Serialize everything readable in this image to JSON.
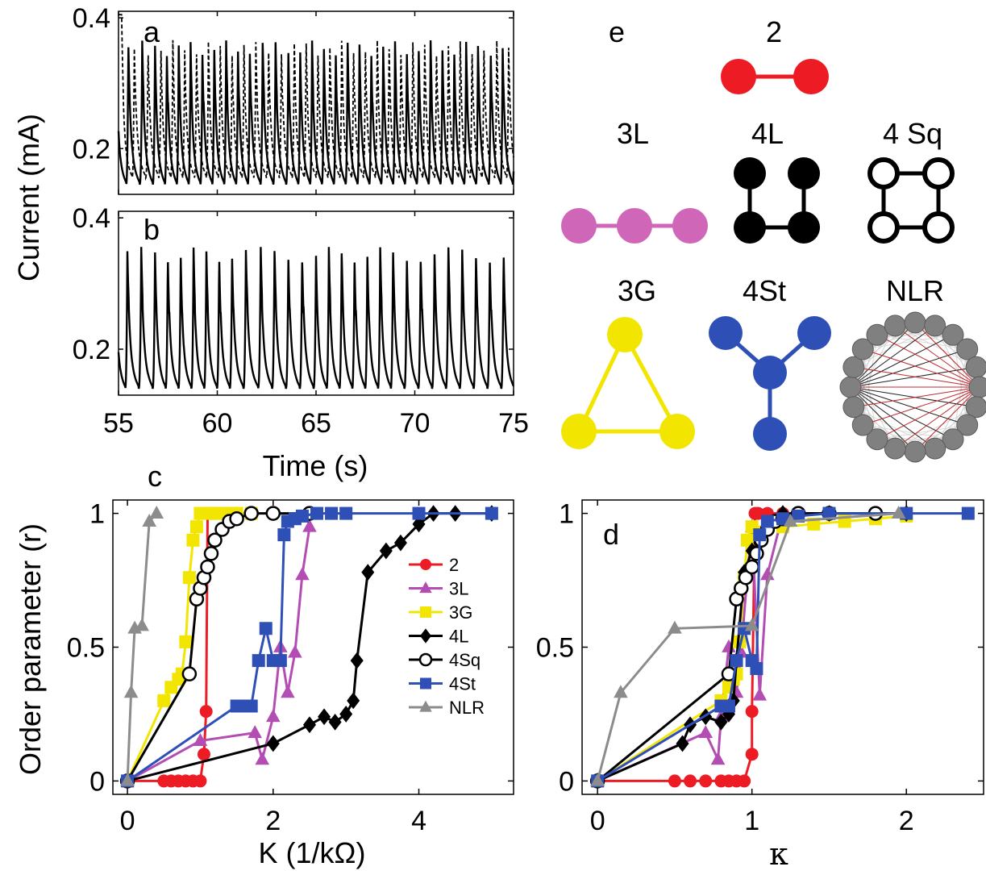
{
  "chart_data": [
    {
      "panel": "a",
      "type": "line",
      "ylabel": "Current (mA)",
      "xlim": [
        55,
        75
      ],
      "ylim": [
        0.13,
        0.41
      ],
      "yticks": [
        "0.2",
        "0.4"
      ],
      "series": [
        {
          "style": "solid",
          "peak_times": [
            55.5,
            56.2,
            56.85,
            57.45,
            58.05,
            58.65,
            59.25,
            59.85,
            60.45,
            61.05,
            61.65,
            62.3,
            62.95,
            63.6,
            64.2,
            64.8,
            65.4,
            66.0,
            66.6,
            67.2,
            67.8,
            68.4,
            69.0,
            69.6,
            70.2,
            70.8,
            71.4,
            72.0,
            72.6,
            73.2,
            73.85,
            74.45
          ],
          "peak_max": 0.36,
          "trough_min": 0.145
        },
        {
          "style": "dashed",
          "peak_times": [
            55.8,
            56.5,
            57.15,
            57.75,
            58.35,
            58.95,
            59.55,
            60.15,
            60.75,
            61.35,
            61.95,
            62.6,
            63.25,
            63.9,
            64.5,
            65.1,
            65.7,
            66.3,
            66.9,
            67.5,
            68.1,
            68.7,
            69.3,
            69.9,
            70.5,
            71.1,
            71.7,
            72.3,
            72.9,
            73.5,
            74.15,
            74.75
          ],
          "peak_max": 0.36,
          "trough_min": 0.155
        }
      ]
    },
    {
      "panel": "b",
      "type": "line",
      "xlabel": "Time (s)",
      "xlim": [
        55,
        75
      ],
      "ylim": [
        0.13,
        0.41
      ],
      "xticks": [
        "55",
        "60",
        "65",
        "70",
        "75"
      ],
      "yticks": [
        "0.2",
        "0.4"
      ],
      "series": [
        {
          "style": "solid",
          "peak_times": [
            55.45,
            56.15,
            56.85,
            57.5,
            58.15,
            58.8,
            59.45,
            60.1,
            60.75,
            61.45,
            62.2,
            62.9,
            63.6,
            64.3,
            65.0,
            65.65,
            66.3,
            66.95,
            67.6,
            68.25,
            68.9,
            69.6,
            70.3,
            71.0,
            71.7,
            72.4,
            73.1,
            73.8,
            74.5
          ],
          "peak_max": 0.35,
          "trough_min": 0.14
        }
      ]
    },
    {
      "panel": "c",
      "type": "line",
      "xlabel": "K (1/kΩ)",
      "ylabel": "Order parameter (r)",
      "xlim": [
        -0.2,
        5.3
      ],
      "ylim": [
        -0.05,
        1.05
      ],
      "xticks": [
        "0",
        "2",
        "4"
      ],
      "yticks": [
        "0",
        "0.5",
        "1"
      ],
      "legend_position": "center-right",
      "series": [
        {
          "name": "2",
          "color": "#ed1c24",
          "marker": "circle-filled",
          "x": [
            0,
            0.5,
            0.6,
            0.7,
            0.8,
            0.9,
            1.0,
            1.05,
            1.08,
            1.1,
            1.15,
            1.2,
            1.3,
            1.5
          ],
          "y": [
            0,
            0,
            0,
            0,
            0,
            0,
            0,
            0.1,
            0.26,
            1.0,
            1.0,
            1.0,
            1.0,
            1.0
          ]
        },
        {
          "name": "3L",
          "color": "#b34db3",
          "marker": "triangle-filled",
          "x": [
            0,
            1.0,
            1.75,
            1.85,
            2.0,
            2.1,
            2.2,
            2.3,
            2.4,
            2.5
          ],
          "y": [
            0,
            0.15,
            0.18,
            0.08,
            0.24,
            0.5,
            0.33,
            0.48,
            0.77,
            0.95
          ]
        },
        {
          "name": "3G",
          "color": "#f2e600",
          "marker": "square-filled",
          "x": [
            0,
            0.5,
            0.6,
            0.7,
            0.75,
            0.8,
            0.85,
            0.9,
            0.95,
            1.0,
            1.1,
            1.2,
            1.3,
            1.4,
            1.5,
            1.7
          ],
          "y": [
            0,
            0.3,
            0.35,
            0.38,
            0.4,
            0.52,
            0.76,
            0.9,
            0.95,
            1.0,
            1.0,
            1.0,
            1.0,
            1.0,
            1.0,
            1.0
          ]
        },
        {
          "name": "4L",
          "color": "#000000",
          "marker": "diamond-filled",
          "x": [
            0,
            2.0,
            2.5,
            2.7,
            2.85,
            3.0,
            3.1,
            3.15,
            3.3,
            3.55,
            3.75,
            4.0,
            4.2,
            4.5,
            5.0
          ],
          "y": [
            0,
            0.14,
            0.21,
            0.24,
            0.22,
            0.25,
            0.3,
            0.45,
            0.78,
            0.86,
            0.89,
            0.96,
            1.0,
            1.0,
            1.0
          ]
        },
        {
          "name": "4Sq",
          "color": "#000000",
          "marker": "circle-open",
          "x": [
            0,
            0.85,
            0.95,
            1.0,
            1.05,
            1.1,
            1.15,
            1.2,
            1.3,
            1.4,
            1.5,
            1.7,
            2.0,
            2.5
          ],
          "y": [
            0,
            0.4,
            0.68,
            0.72,
            0.76,
            0.8,
            0.85,
            0.9,
            0.94,
            0.97,
            0.98,
            1.0,
            1.0,
            1.0
          ]
        },
        {
          "name": "4St",
          "color": "#2e4fb6",
          "marker": "square-filled",
          "x": [
            0,
            1.5,
            1.6,
            1.7,
            1.8,
            1.9,
            2.0,
            2.1,
            2.15,
            2.2,
            2.3,
            2.4,
            2.6,
            2.8,
            3.0,
            4.0,
            5.0
          ],
          "y": [
            0,
            0.28,
            0.28,
            0.28,
            0.45,
            0.57,
            0.45,
            0.45,
            0.92,
            0.97,
            0.98,
            0.99,
            1.0,
            1.0,
            1.0,
            1.0,
            1.0
          ]
        },
        {
          "name": "NLR",
          "color": "#8c8c8c",
          "marker": "triangle-filled",
          "x": [
            0,
            0.05,
            0.1,
            0.2,
            0.3,
            0.4
          ],
          "y": [
            0,
            0.33,
            0.57,
            0.58,
            0.97,
            1.0
          ]
        }
      ]
    },
    {
      "panel": "d",
      "type": "line",
      "xlabel": "κ",
      "xlim": [
        -0.1,
        2.5
      ],
      "ylim": [
        -0.05,
        1.05
      ],
      "xticks": [
        "0",
        "1",
        "2"
      ],
      "yticks": [
        "0",
        "0.5",
        "1"
      ],
      "series": [
        {
          "name": "2",
          "color": "#ed1c24",
          "marker": "circle-filled",
          "x": [
            0,
            0.5,
            0.6,
            0.7,
            0.8,
            0.85,
            0.9,
            0.95,
            1.0,
            1.0,
            1.02,
            1.04,
            1.1,
            1.2
          ],
          "y": [
            0,
            0,
            0,
            0,
            0,
            0,
            0,
            0,
            0.1,
            0.26,
            1.0,
            1.0,
            1.0,
            1.0
          ]
        },
        {
          "name": "3L",
          "color": "#b34db3",
          "marker": "triangle-filled",
          "x": [
            0,
            0.7,
            0.78,
            0.8,
            0.85,
            0.9,
            0.93,
            0.97,
            1.0,
            1.05,
            1.1,
            1.2
          ],
          "y": [
            0,
            0.18,
            0.08,
            0.24,
            0.5,
            0.33,
            0.48,
            0.77,
            0.95,
            0.32,
            0.77,
            1.0
          ]
        },
        {
          "name": "3G",
          "color": "#f2e600",
          "marker": "square-filled",
          "x": [
            0,
            0.8,
            0.85,
            0.88,
            0.9,
            0.92,
            0.95,
            0.97,
            1.0,
            1.2,
            1.4,
            1.6,
            1.8,
            2.0
          ],
          "y": [
            0,
            0.3,
            0.35,
            0.38,
            0.4,
            0.52,
            0.76,
            0.9,
            0.95,
            0.95,
            0.96,
            0.97,
            0.98,
            0.99
          ]
        },
        {
          "name": "4L",
          "color": "#000000",
          "marker": "diamond-filled",
          "x": [
            0,
            0.55,
            0.6,
            0.7,
            0.8,
            0.85,
            0.88,
            0.9,
            0.95,
            1.0,
            1.05,
            1.1,
            1.2,
            1.5,
            2.0
          ],
          "y": [
            0,
            0.14,
            0.21,
            0.24,
            0.22,
            0.25,
            0.3,
            0.45,
            0.78,
            0.86,
            0.89,
            0.96,
            1.0,
            1.0,
            1.0
          ]
        },
        {
          "name": "4Sq",
          "color": "#000000",
          "marker": "circle-open",
          "x": [
            0,
            0.85,
            0.9,
            0.93,
            0.96,
            1.0,
            1.03,
            1.06,
            1.1,
            1.15,
            1.2,
            1.3,
            1.5,
            1.8
          ],
          "y": [
            0,
            0.4,
            0.68,
            0.72,
            0.76,
            0.8,
            0.85,
            0.9,
            0.94,
            0.97,
            0.98,
            1.0,
            1.0,
            1.0
          ]
        },
        {
          "name": "4St",
          "color": "#2e4fb6",
          "marker": "square-filled",
          "x": [
            0,
            0.8,
            0.85,
            0.9,
            0.95,
            1.0,
            1.03,
            1.05,
            1.1,
            1.2,
            1.3,
            1.5,
            2.0,
            2.4
          ],
          "y": [
            0,
            0.28,
            0.28,
            0.45,
            0.57,
            0.45,
            0.42,
            0.92,
            0.97,
            0.98,
            0.99,
            1.0,
            1.0,
            1.0
          ]
        },
        {
          "name": "NLR",
          "color": "#8c8c8c",
          "marker": "triangle-filled",
          "x": [
            0,
            0.15,
            0.5,
            1.0,
            1.25,
            1.95
          ],
          "y": [
            0,
            0.33,
            0.57,
            0.58,
            0.97,
            1.0
          ]
        }
      ]
    }
  ],
  "panel_e": {
    "letter": "e",
    "networks": [
      {
        "label": "2",
        "color": "#ed1c24",
        "style": "filled"
      },
      {
        "label": "3L",
        "color": "#d066b8",
        "style": "filled"
      },
      {
        "label": "4L",
        "color": "#000000",
        "style": "filled"
      },
      {
        "label": "4 Sq",
        "color": "#000000",
        "style": "open"
      },
      {
        "label": "3G",
        "color": "#f2e600",
        "style": "filled"
      },
      {
        "label": "4St",
        "color": "#2e4fb6",
        "style": "filled"
      },
      {
        "label": "NLR",
        "color": "#808080",
        "style": "filled"
      }
    ]
  },
  "panel_letters": {
    "a": "a",
    "b": "b",
    "c": "c",
    "d": "d"
  }
}
